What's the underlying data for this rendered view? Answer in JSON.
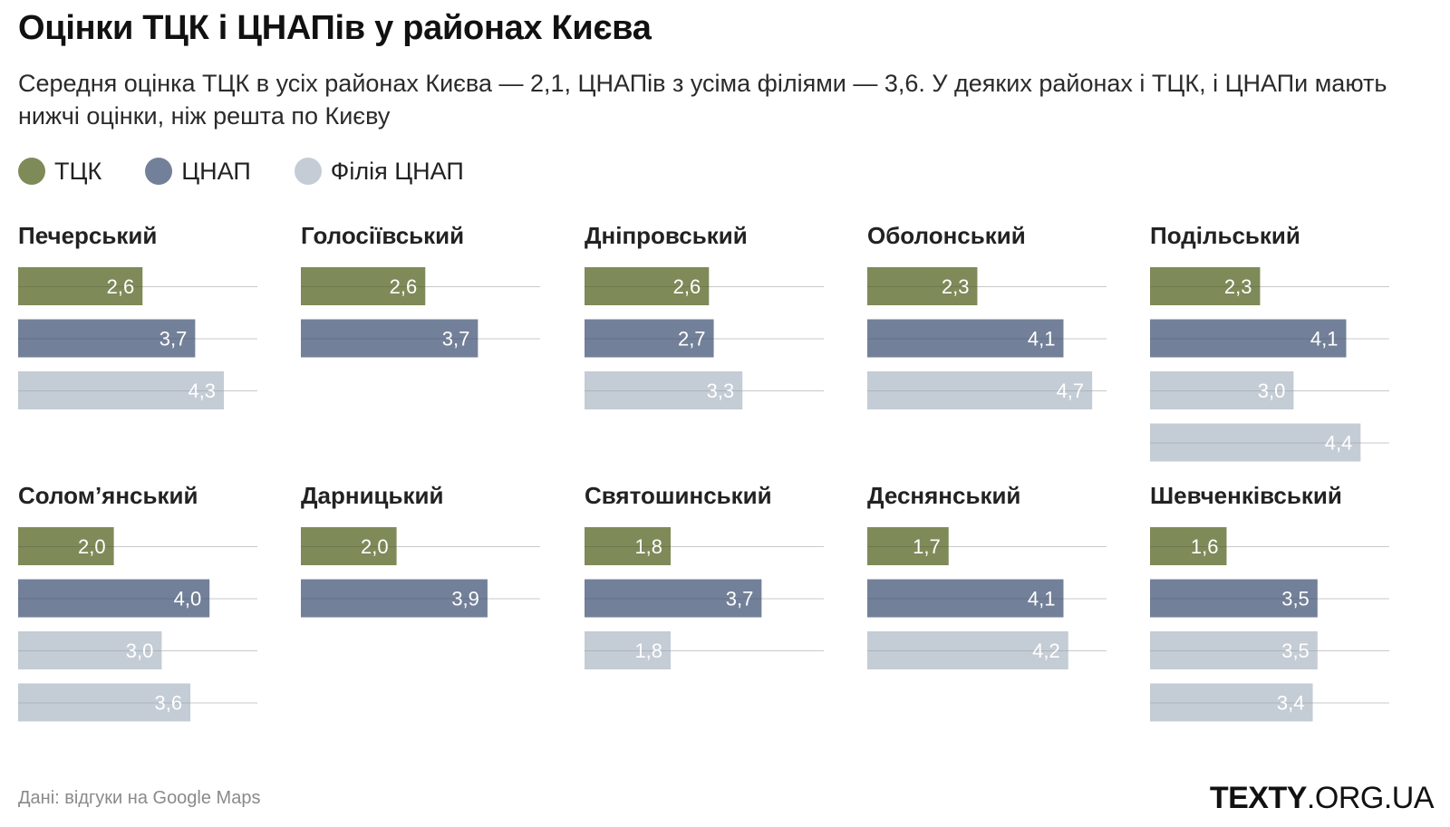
{
  "title": "Оцінки ТЦК і ЦНАПів у районах Києва",
  "subtitle": "Середня оцінка ТЦК в усіх районах Києва — 2,1, ЦНАПів з усіма філіями — 3,6. У деяких районах і ТЦК, і ЦНАПи мають нижчі оцінки, ніж решта по Києву",
  "legend": [
    {
      "label": "ТЦК",
      "color": "#7e8a58"
    },
    {
      "label": "ЦНАП",
      "color": "#738099"
    },
    {
      "label": "Філія ЦНАП",
      "color": "#c4ccd5"
    }
  ],
  "source": "Дані: відгуки на Google Maps",
  "brand": {
    "bold": "TEXTY",
    "rest": ".ORG.UA"
  },
  "chart_data": {
    "type": "bar",
    "orientation": "horizontal",
    "small_multiples": true,
    "xlim": [
      0,
      5
    ],
    "grid": false,
    "legend_placement": "top-left",
    "series_colors": {
      "ТЦК": "#7e8a58",
      "ЦНАП": "#738099",
      "Філія ЦНАП": "#c4ccd5"
    },
    "panels": [
      {
        "district": "Печерський",
        "bars": [
          {
            "series": "ТЦК",
            "value": 2.6,
            "label": "2,6"
          },
          {
            "series": "ЦНАП",
            "value": 3.7,
            "label": "3,7"
          },
          {
            "series": "Філія ЦНАП",
            "value": 4.3,
            "label": "4,3"
          }
        ]
      },
      {
        "district": "Голосіївський",
        "bars": [
          {
            "series": "ТЦК",
            "value": 2.6,
            "label": "2,6"
          },
          {
            "series": "ЦНАП",
            "value": 3.7,
            "label": "3,7"
          }
        ]
      },
      {
        "district": "Дніпровський",
        "bars": [
          {
            "series": "ТЦК",
            "value": 2.6,
            "label": "2,6"
          },
          {
            "series": "ЦНАП",
            "value": 2.7,
            "label": "2,7"
          },
          {
            "series": "Філія ЦНАП",
            "value": 3.3,
            "label": "3,3"
          }
        ]
      },
      {
        "district": "Оболонський",
        "bars": [
          {
            "series": "ТЦК",
            "value": 2.3,
            "label": "2,3"
          },
          {
            "series": "ЦНАП",
            "value": 4.1,
            "label": "4,1"
          },
          {
            "series": "Філія ЦНАП",
            "value": 4.7,
            "label": "4,7"
          }
        ]
      },
      {
        "district": "Подільський",
        "bars": [
          {
            "series": "ТЦК",
            "value": 2.3,
            "label": "2,3"
          },
          {
            "series": "ЦНАП",
            "value": 4.1,
            "label": "4,1"
          },
          {
            "series": "Філія ЦНАП",
            "value": 3.0,
            "label": "3,0"
          },
          {
            "series": "Філія ЦНАП",
            "value": 4.4,
            "label": "4,4"
          }
        ]
      },
      {
        "district": "Солом’янський",
        "bars": [
          {
            "series": "ТЦК",
            "value": 2.0,
            "label": "2,0"
          },
          {
            "series": "ЦНАП",
            "value": 4.0,
            "label": "4,0"
          },
          {
            "series": "Філія ЦНАП",
            "value": 3.0,
            "label": "3,0"
          },
          {
            "series": "Філія ЦНАП",
            "value": 3.6,
            "label": "3,6"
          }
        ]
      },
      {
        "district": "Дарницький",
        "bars": [
          {
            "series": "ТЦК",
            "value": 2.0,
            "label": "2,0"
          },
          {
            "series": "ЦНАП",
            "value": 3.9,
            "label": "3,9"
          }
        ]
      },
      {
        "district": "Святошинський",
        "bars": [
          {
            "series": "ТЦК",
            "value": 1.8,
            "label": "1,8"
          },
          {
            "series": "ЦНАП",
            "value": 3.7,
            "label": "3,7"
          },
          {
            "series": "Філія ЦНАП",
            "value": 1.8,
            "label": "1,8"
          }
        ]
      },
      {
        "district": "Деснянський",
        "bars": [
          {
            "series": "ТЦК",
            "value": 1.7,
            "label": "1,7"
          },
          {
            "series": "ЦНАП",
            "value": 4.1,
            "label": "4,1"
          },
          {
            "series": "Філія ЦНАП",
            "value": 4.2,
            "label": "4,2"
          }
        ]
      },
      {
        "district": "Шевченківський",
        "bars": [
          {
            "series": "ТЦК",
            "value": 1.6,
            "label": "1,6"
          },
          {
            "series": "ЦНАП",
            "value": 3.5,
            "label": "3,5"
          },
          {
            "series": "Філія ЦНАП",
            "value": 3.5,
            "label": "3,5"
          },
          {
            "series": "Філія ЦНАП",
            "value": 3.4,
            "label": "3,4"
          }
        ]
      }
    ]
  }
}
